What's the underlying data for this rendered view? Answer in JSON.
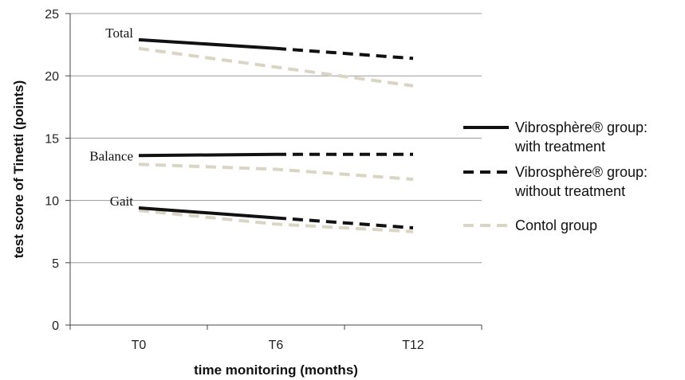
{
  "chart_data": {
    "type": "line",
    "xlabel": "time monitoring (months)",
    "ylabel": "test score of Tinetti  (points)",
    "categories": [
      "T0",
      "T6",
      "T12"
    ],
    "ylim": [
      0,
      25
    ],
    "yticks": [
      0,
      5,
      10,
      15,
      20,
      25
    ],
    "grid": true,
    "legend_position": "right",
    "legend": [
      {
        "label_line1": "Vibrosphère® group:",
        "label_line2": "with treatment",
        "style": "solid",
        "color": "#111111"
      },
      {
        "label_line1": "Vibrosphère® group:",
        "label_line2": "without treatment",
        "style": "dashed",
        "color": "#111111"
      },
      {
        "label_line1": "Contol group",
        "label_line2": "",
        "style": "dashed",
        "color": "#d9d4c4"
      }
    ],
    "annotations": [
      "Total",
      "Balance",
      "Gait"
    ],
    "series": [
      {
        "group": "Total",
        "legend_index": 0,
        "x": [
          "T0",
          "T6"
        ],
        "values": [
          22.9,
          22.2
        ]
      },
      {
        "group": "Total",
        "legend_index": 1,
        "x": [
          "T6",
          "T12"
        ],
        "values": [
          22.2,
          21.4
        ]
      },
      {
        "group": "Total",
        "legend_index": 2,
        "x": [
          "T0",
          "T6",
          "T12"
        ],
        "values": [
          22.2,
          20.7,
          19.2
        ]
      },
      {
        "group": "Balance",
        "legend_index": 0,
        "x": [
          "T0",
          "T6"
        ],
        "values": [
          13.6,
          13.7
        ]
      },
      {
        "group": "Balance",
        "legend_index": 1,
        "x": [
          "T6",
          "T12"
        ],
        "values": [
          13.7,
          13.7
        ]
      },
      {
        "group": "Balance",
        "legend_index": 2,
        "x": [
          "T0",
          "T6",
          "T12"
        ],
        "values": [
          12.9,
          12.5,
          11.7
        ]
      },
      {
        "group": "Gait",
        "legend_index": 0,
        "x": [
          "T0",
          "T6"
        ],
        "values": [
          9.4,
          8.6
        ]
      },
      {
        "group": "Gait",
        "legend_index": 1,
        "x": [
          "T6",
          "T12"
        ],
        "values": [
          8.6,
          7.8
        ]
      },
      {
        "group": "Gait",
        "legend_index": 2,
        "x": [
          "T0",
          "T6",
          "T12"
        ],
        "values": [
          9.2,
          8.1,
          7.5
        ]
      }
    ]
  }
}
